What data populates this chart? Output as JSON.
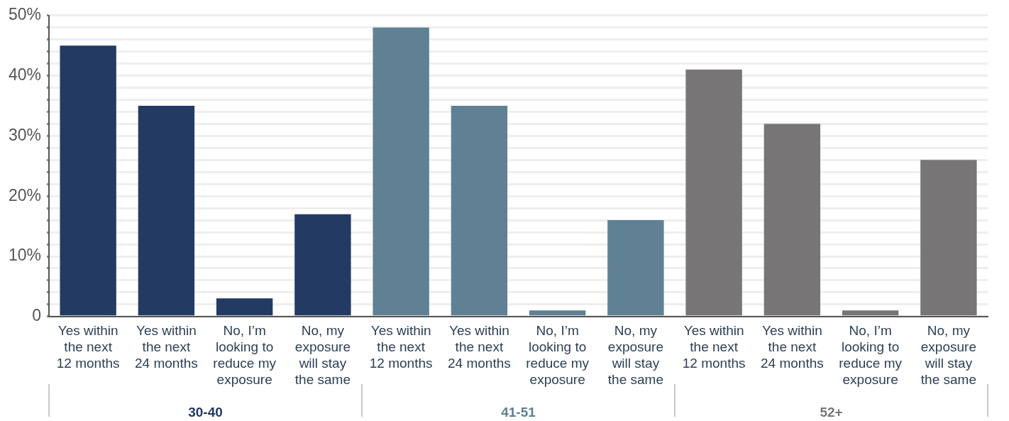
{
  "chart_data": {
    "type": "bar",
    "categories": [
      "Yes within the next 12 months",
      "Yes within the next 24 months",
      "No, I’m looking to reduce my exposure",
      "No, my exposure will stay the same",
      "Yes within the next 12 months",
      "Yes within the next 24 months",
      "No, I’m looking to reduce my exposure",
      "No, my exposure will stay the same",
      "Yes within the next 12 months",
      "Yes within the next 24 months",
      "No, I’m looking to reduce my exposure",
      "No, my exposure will stay the same"
    ],
    "series": [
      {
        "name": "30-40",
        "color": "#233a63",
        "values": [
          45,
          35,
          3,
          17,
          null,
          null,
          null,
          null,
          null,
          null,
          null,
          null
        ]
      },
      {
        "name": "41-51",
        "color": "#5f8193",
        "values": [
          null,
          null,
          null,
          null,
          48,
          35,
          1,
          16,
          null,
          null,
          null,
          null
        ]
      },
      {
        "name": "52+",
        "color": "#777576",
        "values": [
          null,
          null,
          null,
          null,
          null,
          null,
          null,
          null,
          41,
          32,
          1,
          26
        ]
      }
    ],
    "ylim": [
      0,
      50
    ],
    "yticks": [
      0,
      {
        "value": 2,
        "label": null
      },
      {
        "value": 4,
        "label": null
      },
      {
        "value": 6,
        "label": null
      },
      {
        "value": 8,
        "label": null
      },
      {
        "value": 10,
        "label": "10%"
      },
      {
        "value": 12,
        "label": null
      },
      {
        "value": 14,
        "label": null
      },
      {
        "value": 16,
        "label": null
      },
      {
        "value": 18,
        "label": null
      },
      {
        "value": 20,
        "label": "20%"
      },
      {
        "value": 22,
        "label": null
      },
      {
        "value": 24,
        "label": null
      },
      {
        "value": 26,
        "label": null
      },
      {
        "value": 28,
        "label": null
      },
      {
        "value": 30,
        "label": "30%"
      },
      {
        "value": 32,
        "label": null
      },
      {
        "value": 34,
        "label": null
      },
      {
        "value": 36,
        "label": null
      },
      {
        "value": 38,
        "label": null
      },
      {
        "value": 40,
        "label": "40%"
      },
      {
        "value": 42,
        "label": null
      },
      {
        "value": 44,
        "label": null
      },
      {
        "value": 46,
        "label": null
      },
      {
        "value": 48,
        "label": null
      },
      {
        "value": 50,
        "label": "50%"
      }
    ],
    "grid": "y",
    "legend": false
  }
}
